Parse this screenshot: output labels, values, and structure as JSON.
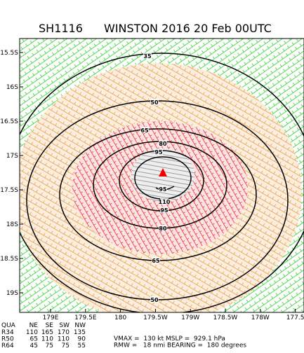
{
  "header": {
    "storm_id": "SH1116",
    "title": "WINSTON 2016 20 Feb 00UTC"
  },
  "lat_labels": [
    "15.5S",
    "16S",
    "16.5S",
    "17S",
    "17.5S",
    "18S",
    "18.5S",
    "19S"
  ],
  "lon_labels": [
    "179E",
    "179.5E",
    "180",
    "179.5W",
    "179W",
    "178.5W",
    "178W",
    "177.5"
  ],
  "contours": [
    {
      "label": 35
    },
    {
      "label": 50
    },
    {
      "label": 65
    },
    {
      "label": 80
    },
    {
      "label": 95
    },
    {
      "label": 110
    }
  ],
  "table": {
    "header": [
      "QUA",
      "NE",
      "SE",
      "SW",
      "NW"
    ],
    "rows": [
      [
        "R34",
        110,
        165,
        170,
        135
      ],
      [
        "R50",
        65,
        110,
        110,
        90
      ],
      [
        "R64",
        45,
        75,
        75,
        55
      ]
    ]
  },
  "info": [
    "VMAX =  130 kt MSLP =  929.1 hPa",
    "RMW =   18 nmi BEARING =  180 degrees"
  ]
}
